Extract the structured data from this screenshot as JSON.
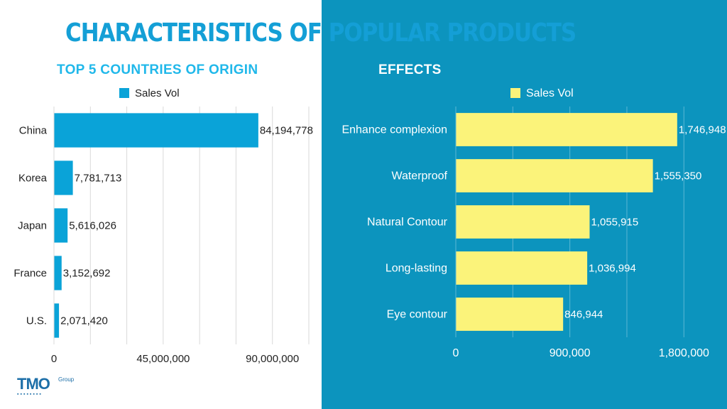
{
  "title": "CHARACTERISTICS OF POPULAR PRODUCTS",
  "logo": {
    "main": "TMO",
    "group": "Group"
  },
  "chart_data": [
    {
      "type": "bar",
      "orientation": "horizontal",
      "title": "TOP 5 COUNTRIES OF ORIGIN",
      "categories": [
        "China",
        "Korea",
        "Japan",
        "France",
        "U.S."
      ],
      "series": [
        {
          "name": "Sales Vol",
          "values": [
            84194778,
            7781713,
            5616026,
            3152692,
            2071420
          ]
        }
      ],
      "data_labels": [
        "84,194,778",
        "7,781,713",
        "5,616,026",
        "3,152,692",
        "2,071,420"
      ],
      "xlim": [
        0,
        105000000
      ],
      "xticks": [
        0,
        45000000,
        90000000
      ],
      "xtick_labels": [
        "0",
        "45,000,000",
        "90,000,000"
      ],
      "grid": true,
      "legend": "top-center",
      "colors": {
        "bar": "#0aa3d8",
        "text": "#1f1f1f",
        "grid": "#d9d9d9"
      }
    },
    {
      "type": "bar",
      "orientation": "horizontal",
      "title": "EFFECTS",
      "categories": [
        "Enhance complexion",
        "Waterproof",
        "Natural Contour",
        "Long-lasting",
        "Eye contour"
      ],
      "series": [
        {
          "name": "Sales Vol",
          "values": [
            1746948,
            1555350,
            1055915,
            1036994,
            846944
          ]
        }
      ],
      "data_labels": [
        "1,746,948",
        "1,555,350",
        "1,055,915",
        "1,036,994",
        "846,944"
      ],
      "xlim": [
        0,
        2000000
      ],
      "xticks": [
        0,
        900000,
        1800000
      ],
      "xtick_labels": [
        "0",
        "900,000",
        "1,800,000"
      ],
      "grid": true,
      "legend": "top-center",
      "colors": {
        "bar": "#fbf37a",
        "text": "#ffffff",
        "grid": "#5bb7d4"
      }
    }
  ]
}
